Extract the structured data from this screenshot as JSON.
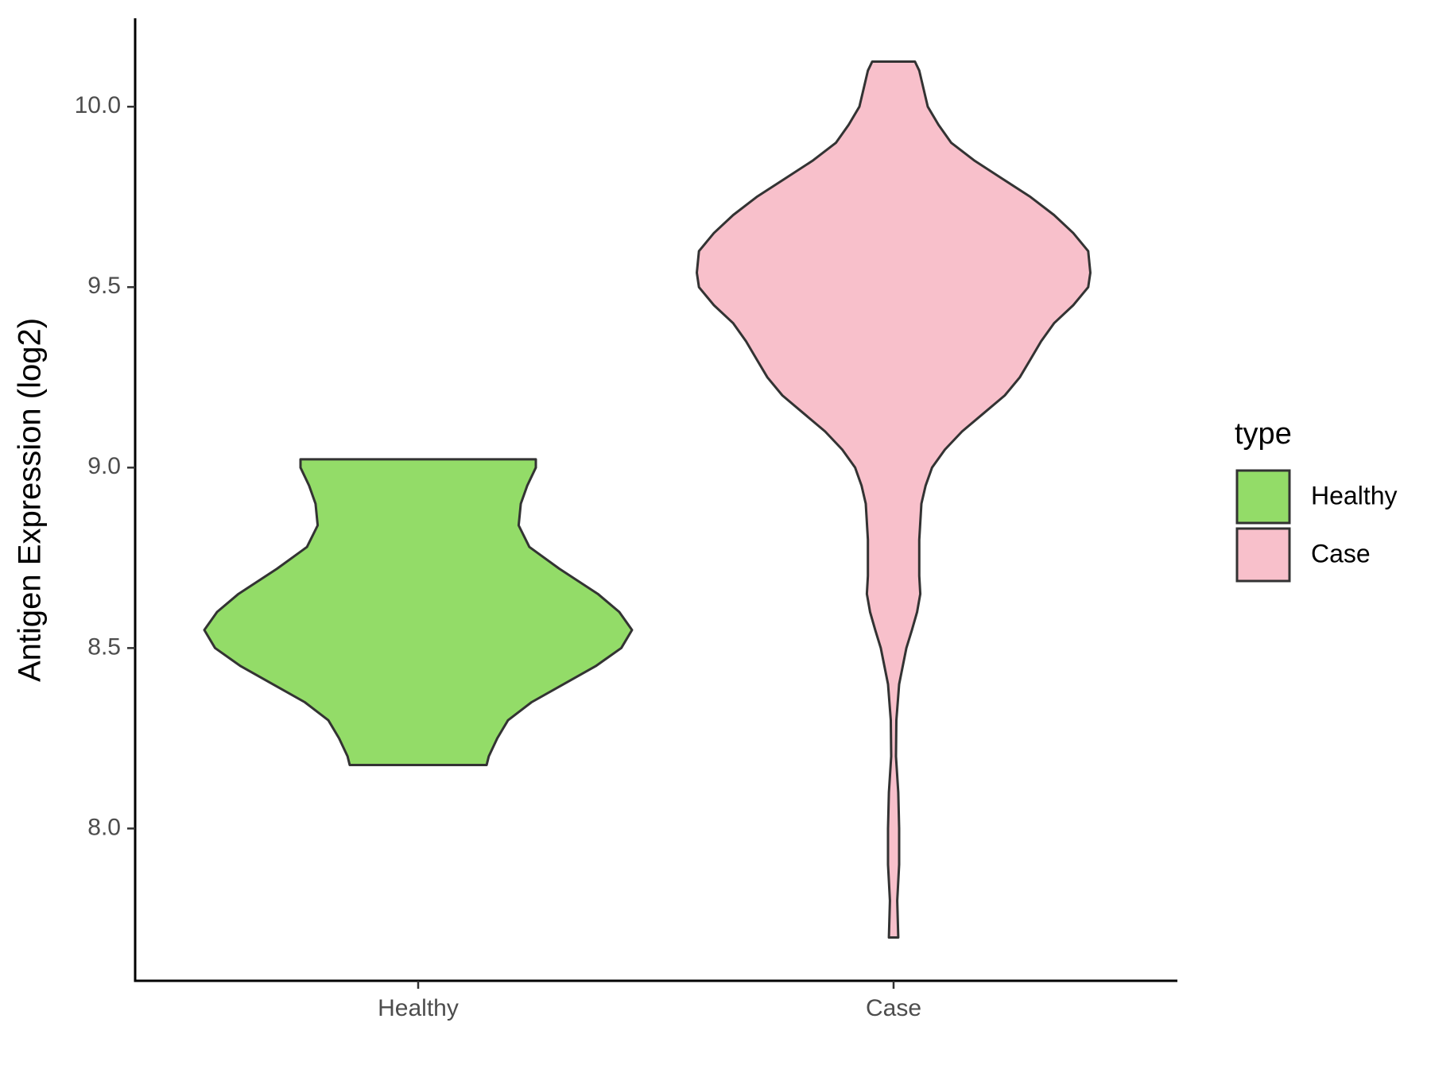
{
  "chart_data": {
    "type": "violin",
    "y_label": "Antigen Expression (log2)",
    "categories": [
      "Healthy",
      "Case"
    ],
    "legend_title": "type",
    "ylim": [
      7.578,
      10.245
    ],
    "yticks": [
      {
        "value": 8,
        "label": "8.0"
      },
      8.5,
      {
        "value": 9,
        "label": "9.0"
      },
      9.5,
      {
        "value": 10,
        "label": "10.0"
      }
    ],
    "grid": false,
    "legend_position": "right",
    "series": [
      {
        "name": "Healthy",
        "color": "#93DC68",
        "y": [
          9.023,
          9.0,
          8.95,
          8.9,
          8.84,
          8.78,
          8.72,
          8.65,
          8.6,
          8.55,
          8.5,
          8.45,
          8.4,
          8.35,
          8.3,
          8.25,
          8.2,
          8.176
        ],
        "width": [
          0.55,
          0.55,
          0.51,
          0.48,
          0.47,
          0.52,
          0.66,
          0.84,
          0.94,
          1.0,
          0.95,
          0.83,
          0.68,
          0.53,
          0.42,
          0.37,
          0.33,
          0.32
        ]
      },
      {
        "name": "Case",
        "color": "#F8C0CB",
        "y": [
          10.125,
          10.1,
          10.0,
          9.95,
          9.9,
          9.85,
          9.8,
          9.75,
          9.7,
          9.65,
          9.6,
          9.54,
          9.5,
          9.45,
          9.4,
          9.35,
          9.3,
          9.25,
          9.2,
          9.15,
          9.1,
          9.05,
          9.0,
          8.95,
          8.9,
          8.8,
          8.7,
          8.65,
          8.6,
          8.55,
          8.5,
          8.4,
          8.3,
          8.2,
          8.1,
          8.0,
          7.9,
          7.8,
          7.698
        ],
        "width": [
          0.1,
          0.12,
          0.16,
          0.21,
          0.27,
          0.38,
          0.51,
          0.64,
          0.75,
          0.84,
          0.91,
          0.92,
          0.91,
          0.84,
          0.75,
          0.69,
          0.64,
          0.59,
          0.52,
          0.42,
          0.32,
          0.24,
          0.18,
          0.15,
          0.13,
          0.12,
          0.12,
          0.125,
          0.11,
          0.086,
          0.06,
          0.026,
          0.013,
          0.011,
          0.022,
          0.026,
          0.026,
          0.017,
          0.022
        ]
      }
    ]
  }
}
